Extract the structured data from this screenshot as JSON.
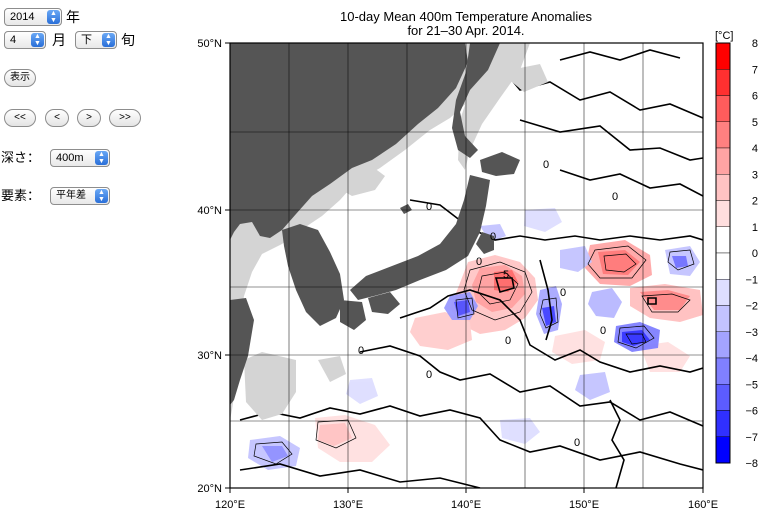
{
  "controls": {
    "year": {
      "value": "2014",
      "unit_label": "年"
    },
    "month": {
      "value": "4",
      "unit_label": "月"
    },
    "dekad": {
      "value": "下",
      "unit_label": "旬"
    },
    "show_button": "表示",
    "nav_buttons": [
      "<<",
      "<",
      ">",
      ">>"
    ],
    "depth": {
      "label": "深さ：",
      "value": "400m"
    },
    "element": {
      "label": "要素：",
      "value": "平年差"
    }
  },
  "chart_data": {
    "type": "heatmap",
    "title": "10-day Mean 400m Temperature Anomalies",
    "subtitle": "for 21–30 Apr. 2014.",
    "x_axis": {
      "range": [
        120,
        160
      ],
      "ticks": [
        "120°E",
        "130°E",
        "140°E",
        "150°E",
        "160°E"
      ]
    },
    "y_axis": {
      "range": [
        20,
        50
      ],
      "ticks": [
        "20°N",
        "30°N",
        "40°N",
        "50°N"
      ]
    },
    "contour_labels": [
      "0",
      "0",
      "0",
      "0",
      "0",
      "0",
      "5",
      "0",
      "0",
      "0",
      "0",
      "0"
    ],
    "colorbar": {
      "unit": "[°C]",
      "ticks": [
        "8",
        "7",
        "6",
        "5",
        "4",
        "3",
        "2",
        "1",
        "0",
        "−1",
        "−2",
        "−3",
        "−4",
        "−5",
        "−6",
        "−7",
        "−8"
      ],
      "colors": [
        "#ff0000",
        "#ff3030",
        "#ff5c5c",
        "#ff8080",
        "#ffa3a3",
        "#ffc3c3",
        "#ffdede",
        "#ffffff",
        "#ffffff",
        "#dedeff",
        "#c3c3ff",
        "#a3a3ff",
        "#8080ff",
        "#5c5cff",
        "#3030ff",
        "#0000ff"
      ]
    }
  }
}
